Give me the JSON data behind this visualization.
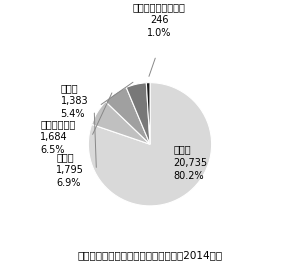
{
  "labels": [
    "印刷業",
    "製本業",
    "印刷物加工業",
    "製版業",
    "印刷関連サービス業"
  ],
  "values": [
    20735,
    1795,
    1684,
    1383,
    246
  ],
  "percents": [
    "80.2%",
    "6.9%",
    "6.5%",
    "5.4%",
    "1.0%"
  ],
  "counts": [
    "20,735",
    "1,795",
    "1,684",
    "1,383",
    "246"
  ],
  "colors": [
    "#d9d9d9",
    "#c0c0c0",
    "#a0a0a0",
    "#787878",
    "#1a1a1a"
  ],
  "title": "印刷・同関連業の事業所数と構成比（2014年）",
  "title_fontsize": 7.5,
  "label_fontsize": 7,
  "startangle": 90,
  "background_color": "#ffffff",
  "wedge_edge_color": "#ffffff",
  "wedge_linewidth": 0.8
}
